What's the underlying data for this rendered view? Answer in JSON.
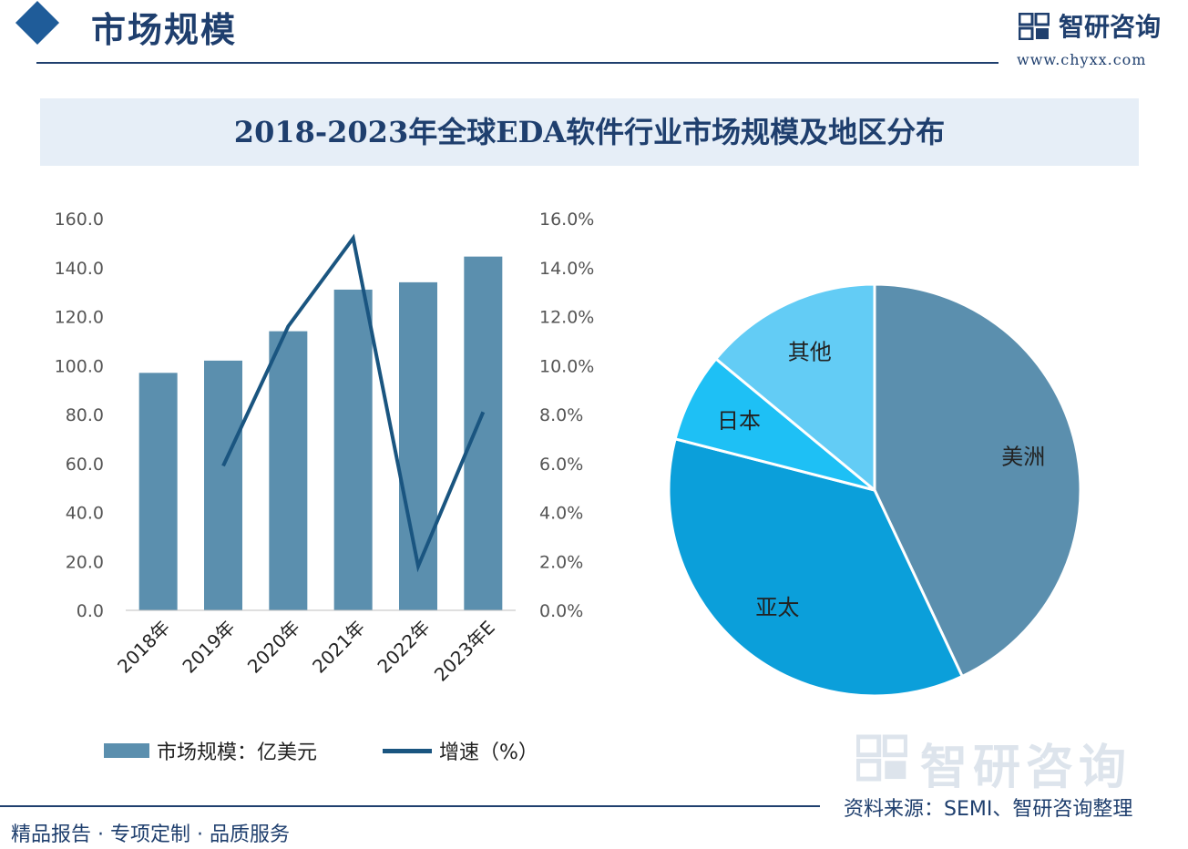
{
  "header": {
    "section_title": "市场规模",
    "brand_name": "智研咨询",
    "brand_url": "www.chyxx.com"
  },
  "chart_title": "2018-2023年全球EDA软件行业市场规模及地区分布",
  "chart_data": [
    {
      "type": "bar",
      "categories": [
        "2018年",
        "2019年",
        "2020年",
        "2021年",
        "2022年",
        "2023年E"
      ],
      "series": [
        {
          "name": "市场规模：亿美元",
          "type": "bar",
          "axis": "left",
          "values": [
            97,
            102,
            114,
            131,
            134,
            144.5
          ]
        },
        {
          "name": "增速（%）",
          "type": "line",
          "axis": "right",
          "values": [
            null,
            5.9,
            11.6,
            15.2,
            1.8,
            8.1
          ]
        }
      ],
      "y_left": {
        "range": [
          0,
          160
        ],
        "ticks": [
          "0.0",
          "20.0",
          "40.0",
          "60.0",
          "80.0",
          "100.0",
          "120.0",
          "140.0",
          "160.0"
        ]
      },
      "y_right": {
        "range": [
          0,
          16
        ],
        "ticks": [
          "0.0%",
          "2.0%",
          "4.0%",
          "6.0%",
          "8.0%",
          "10.0%",
          "12.0%",
          "14.0%",
          "16.0%"
        ]
      },
      "legend_position": "bottom",
      "colors": {
        "bar": "#5b8fae",
        "line": "#1a5580"
      }
    },
    {
      "type": "pie",
      "slices": [
        {
          "label": "美洲",
          "value": 43,
          "color": "#5b8fae"
        },
        {
          "label": "亚太",
          "value": 36,
          "color": "#0b9fda"
        },
        {
          "label": "日本",
          "value": 7,
          "color": "#1ec0f5"
        },
        {
          "label": "其他",
          "value": 14,
          "color": "#63ccf5"
        }
      ]
    }
  ],
  "footer": {
    "tagline": "精品报告 · 专项定制 · 品质服务",
    "source": "资料来源：SEMI、智研咨询整理",
    "watermark": "智研咨询"
  }
}
